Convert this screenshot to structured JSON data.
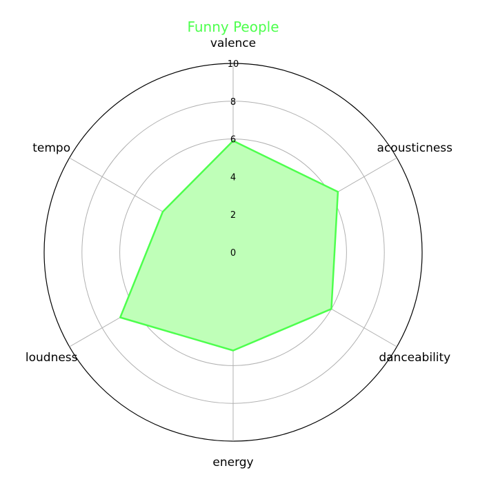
{
  "chart_data": {
    "type": "radar",
    "title": "Funny People",
    "axes": [
      "valence",
      "acousticness",
      "danceability",
      "energy",
      "loudness",
      "tempo"
    ],
    "series": [
      {
        "values": [
          5.9,
          6.4,
          6.0,
          5.2,
          6.9,
          4.3
        ]
      }
    ],
    "rlim": [
      0,
      10
    ],
    "rticks": [
      "0",
      "2",
      "4",
      "6",
      "8",
      "10"
    ],
    "grid": true,
    "colors": {
      "line": "#4dff4d",
      "fill": "#bfffb8",
      "title": "#4dff4d",
      "grid": "#b0b0b0",
      "frame": "#000000"
    }
  }
}
